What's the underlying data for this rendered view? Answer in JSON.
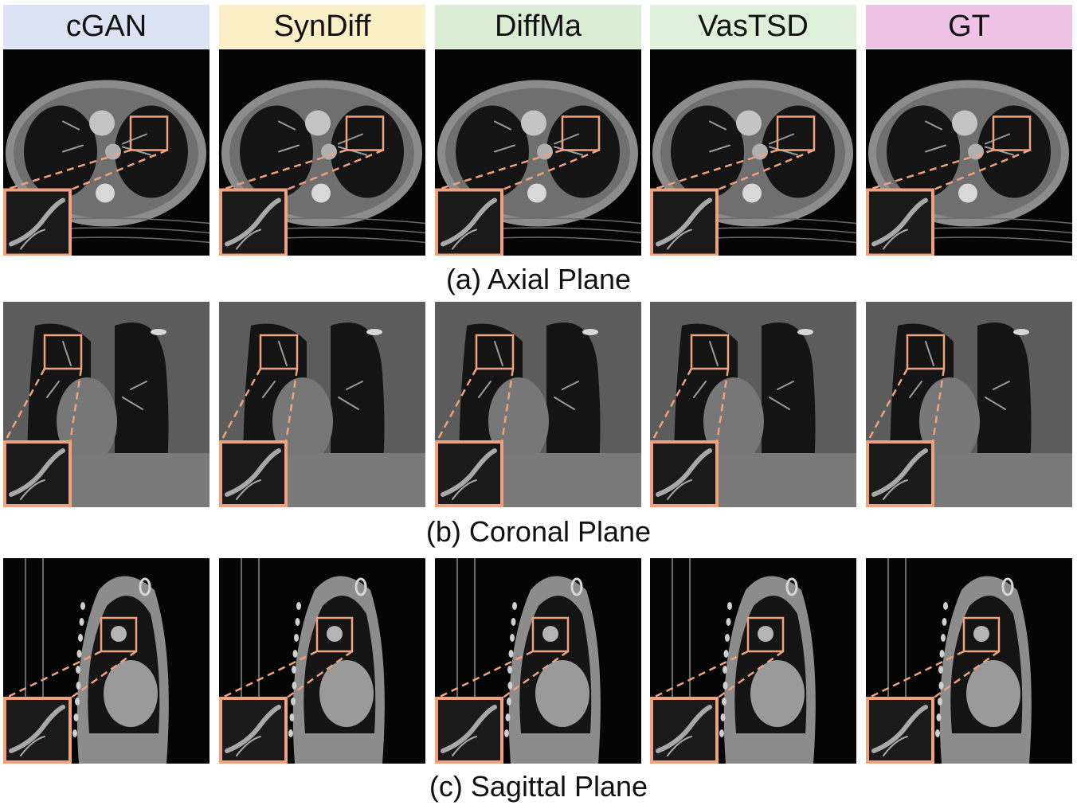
{
  "methods": [
    {
      "name": "cGAN",
      "header_color": "#dce3f4"
    },
    {
      "name": "SynDiff",
      "header_color": "#fbefc8"
    },
    {
      "name": "DiffMa",
      "header_color": "#dcedd6"
    },
    {
      "name": "VasTSD",
      "header_color": "#e0f1db"
    },
    {
      "name": "GT",
      "header_color": "#f0c2e6"
    }
  ],
  "rows": [
    {
      "plane": "axial",
      "caption": "(a) Axial Plane"
    },
    {
      "plane": "coronal",
      "caption": "(b) Coronal Plane"
    },
    {
      "plane": "sagittal",
      "caption": "(c) Sagittal Plane"
    }
  ],
  "colors": {
    "zoom_box": "#f0a27e",
    "background": "#050505",
    "tissue": "#8c8c8c",
    "lung": "#141414",
    "bone": "#d8d8d8"
  }
}
